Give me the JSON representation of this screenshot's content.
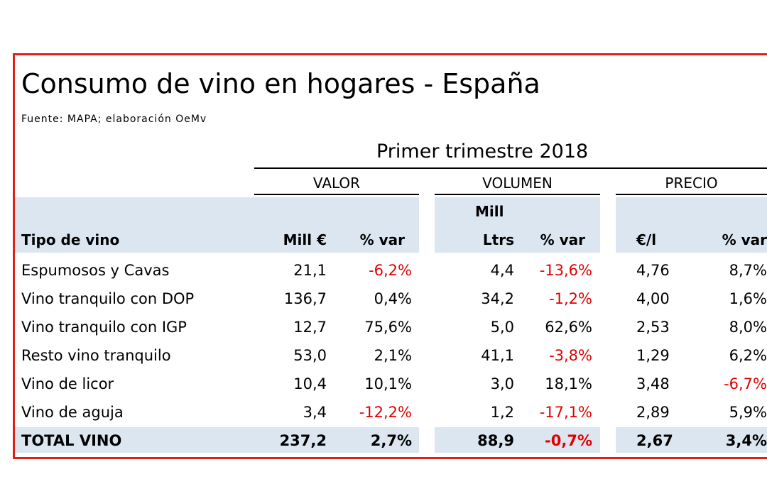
{
  "title": "Consumo de vino en hogares - España",
  "source": "Fuente: MAPA; elaboración OeMv",
  "period": "Primer trimestre 2018",
  "groups": {
    "valor": "VALOR",
    "volumen": "VOLUMEN",
    "precio": "PRECIO"
  },
  "headers": {
    "tipo": "Tipo de vino",
    "mill_eur": "Mill €",
    "var1": "% var",
    "mill_top": "Mill",
    "ltrs": "Ltrs",
    "var2": "% var",
    "eur_l": "€/l",
    "var3": "% var"
  },
  "rows": [
    {
      "tipo": "Espumosos y Cavas",
      "valor": "21,1",
      "var_valor": "-6,2%",
      "volumen": "4,4",
      "var_volumen": "-13,6%",
      "precio": "4,76",
      "var_precio": "8,7%"
    },
    {
      "tipo": "Vino tranquilo con DOP",
      "valor": "136,7",
      "var_valor": "0,4%",
      "volumen": "34,2",
      "var_volumen": "-1,2%",
      "precio": "4,00",
      "var_precio": "1,6%"
    },
    {
      "tipo": "Vino tranquilo con IGP",
      "valor": "12,7",
      "var_valor": "75,6%",
      "volumen": "5,0",
      "var_volumen": "62,6%",
      "precio": "2,53",
      "var_precio": "8,0%"
    },
    {
      "tipo": "Resto vino tranquilo",
      "valor": "53,0",
      "var_valor": "2,1%",
      "volumen": "41,1",
      "var_volumen": "-3,8%",
      "precio": "1,29",
      "var_precio": "6,2%"
    },
    {
      "tipo": "Vino de licor",
      "valor": "10,4",
      "var_valor": "10,1%",
      "volumen": "3,0",
      "var_volumen": "18,1%",
      "precio": "3,48",
      "var_precio": "-6,7%"
    },
    {
      "tipo": "Vino de aguja",
      "valor": "3,4",
      "var_valor": "-12,2%",
      "volumen": "1,2",
      "var_volumen": "-17,1%",
      "precio": "2,89",
      "var_precio": "5,9%"
    }
  ],
  "total": {
    "tipo": "TOTAL VINO",
    "valor": "237,2",
    "var_valor": "2,7%",
    "volumen": "88,9",
    "var_volumen": "-0,7%",
    "precio": "2,67",
    "var_precio": "3,4%"
  },
  "colors": {
    "frame": "#e0201b",
    "negative": "#e00000",
    "header_shade": "#dce6f1"
  }
}
